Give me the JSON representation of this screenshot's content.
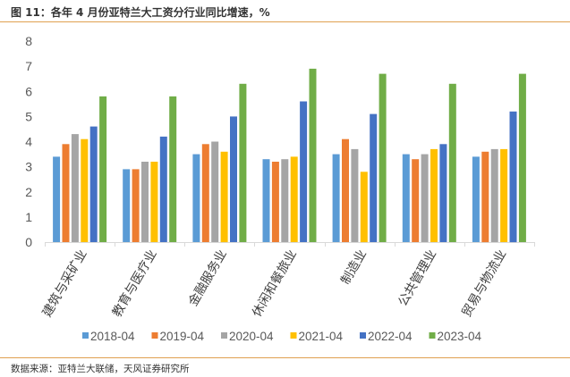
{
  "title": "图 11：各年 4 月份亚特兰大工资分行业同比增速，%",
  "source": "数据来源：亚特兰大联储，天风证券研究所",
  "chart_data": {
    "type": "bar",
    "title": "",
    "xlabel": "",
    "ylabel": "",
    "ylim": [
      0,
      8
    ],
    "yticks": [
      "0",
      "1",
      "2",
      "3",
      "4",
      "5",
      "6",
      "7",
      "8"
    ],
    "grid": false,
    "legend_position": "bottom",
    "categories": [
      "建筑与采矿业",
      "教育与医疗业",
      "金融服务业",
      "休闲和餐旅业",
      "制造业",
      "公共管理业",
      "贸易与物流业"
    ],
    "series": [
      {
        "name": "2018-04",
        "color": "#5b9bd5",
        "values": [
          3.4,
          2.9,
          3.5,
          3.3,
          3.5,
          3.5,
          3.4
        ]
      },
      {
        "name": "2019-04",
        "color": "#ed7d31",
        "values": [
          3.9,
          2.9,
          3.9,
          3.2,
          4.1,
          3.3,
          3.6
        ]
      },
      {
        "name": "2020-04",
        "color": "#a5a5a5",
        "values": [
          4.3,
          3.2,
          4.0,
          3.3,
          3.7,
          3.5,
          3.7
        ]
      },
      {
        "name": "2021-04",
        "color": "#ffc000",
        "values": [
          4.1,
          3.2,
          3.6,
          3.4,
          2.8,
          3.7,
          3.7
        ]
      },
      {
        "name": "2022-04",
        "color": "#4472c4",
        "values": [
          4.6,
          4.2,
          5.0,
          5.6,
          5.1,
          3.9,
          5.2
        ]
      },
      {
        "name": "2023-04",
        "color": "#70ad47",
        "values": [
          5.8,
          5.8,
          6.3,
          6.9,
          6.7,
          6.3,
          6.7
        ]
      }
    ]
  }
}
